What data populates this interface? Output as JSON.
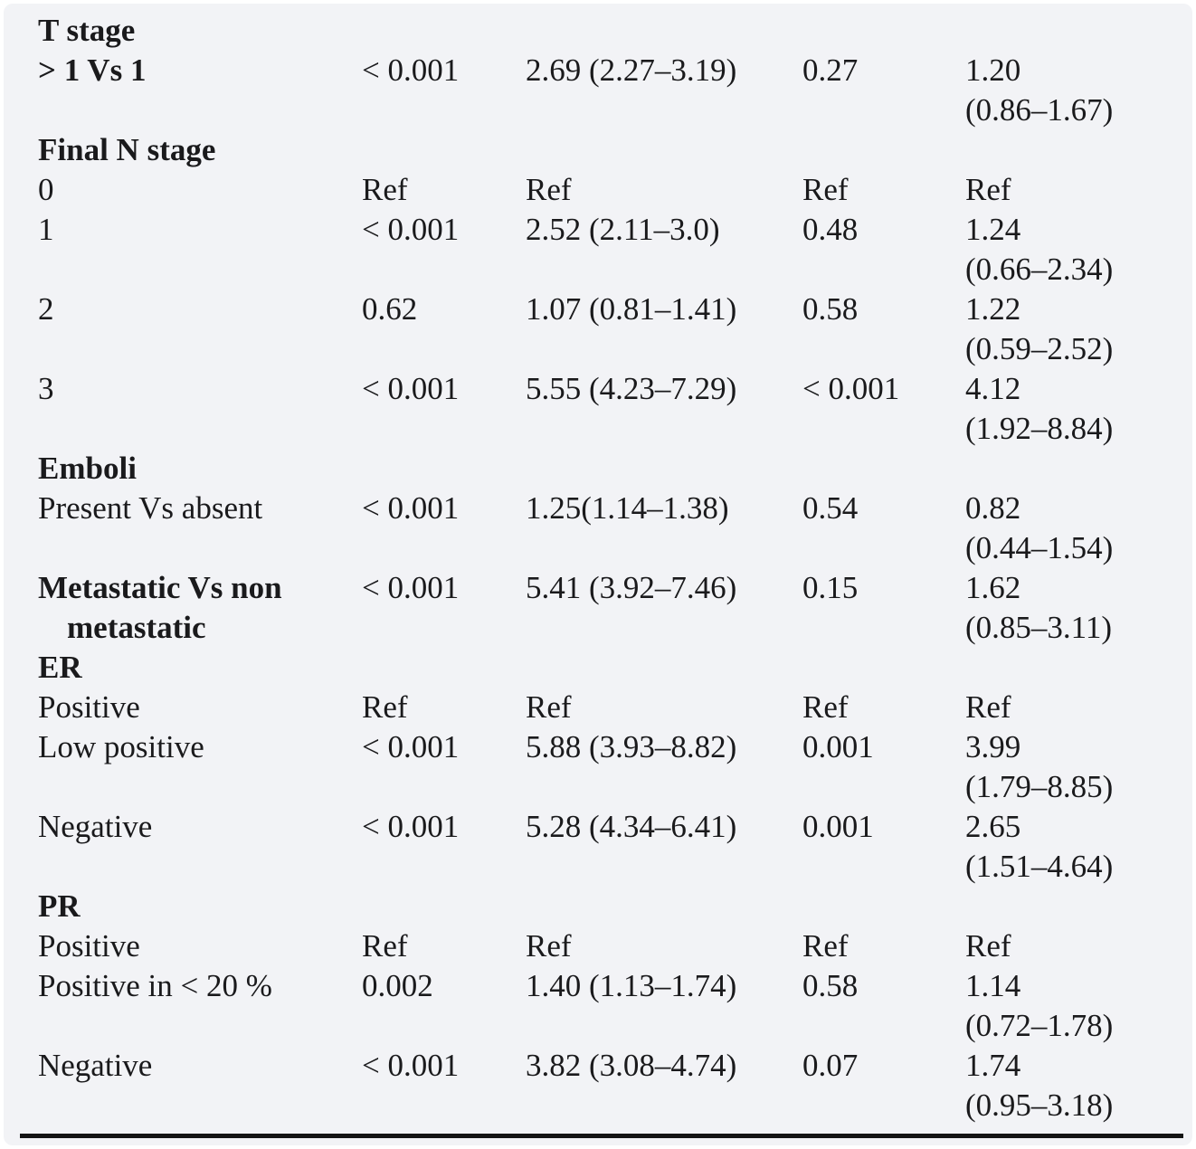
{
  "page": {
    "background_color": "#f2f3f6",
    "text_color": "#1a1a1c",
    "rule_color": "#141414"
  },
  "table": {
    "rows": [
      {
        "type": "section",
        "label": "T stage"
      },
      {
        "type": "data",
        "label": "> 1 Vs 1",
        "p1": "< 0.001",
        "est1": "2.69 (2.27–3.19)",
        "p2": "0.27",
        "est2": "1.20\n(0.86–1.67)"
      },
      {
        "type": "section",
        "label": "Final N stage"
      },
      {
        "type": "data",
        "label": "0",
        "p1": "Ref",
        "est1": "Ref",
        "p2": "Ref",
        "est2": "Ref"
      },
      {
        "type": "data",
        "label": "1",
        "p1": "< 0.001",
        "est1": "2.52 (2.11–3.0)",
        "p2": "0.48",
        "est2": "1.24\n(0.66–2.34)"
      },
      {
        "type": "data",
        "label": "2",
        "p1": "0.62",
        "est1": "1.07 (0.81–1.41)",
        "p2": "0.58",
        "est2": "1.22\n(0.59–2.52)"
      },
      {
        "type": "data",
        "label": "3",
        "p1": "< 0.001",
        "est1": "5.55 (4.23–7.29)",
        "p2": "< 0.001",
        "est2": "4.12\n(1.92–8.84)"
      },
      {
        "type": "section",
        "label": "Emboli"
      },
      {
        "type": "data",
        "label": "Present Vs absent",
        "p1": "< 0.001",
        "est1": "1.25(1.14–1.38)",
        "p2": "0.54",
        "est2": "0.82\n(0.44–1.54)"
      },
      {
        "type": "data",
        "label": "Metastatic Vs non\nmetastatic",
        "p1": "< 0.001",
        "est1": "5.41 (3.92–7.46)",
        "p2": "0.15",
        "est2": "1.62\n(0.85–3.11)"
      },
      {
        "type": "section",
        "label": "ER"
      },
      {
        "type": "data",
        "label": "Positive",
        "p1": "Ref",
        "est1": "Ref",
        "p2": "Ref",
        "est2": "Ref"
      },
      {
        "type": "data",
        "label": "Low positive",
        "p1": "< 0.001",
        "est1": "5.88 (3.93–8.82)",
        "p2": "0.001",
        "est2": "3.99\n(1.79–8.85)"
      },
      {
        "type": "data",
        "label": "Negative",
        "p1": "< 0.001",
        "est1": "5.28 (4.34–6.41)",
        "p2": "0.001",
        "est2": "2.65\n(1.51–4.64)"
      },
      {
        "type": "section",
        "label": "PR"
      },
      {
        "type": "data",
        "label": "Positive",
        "p1": "Ref",
        "est1": "Ref",
        "p2": "Ref",
        "est2": "Ref"
      },
      {
        "type": "data",
        "label": "Positive in < 20 %",
        "p1": "0.002",
        "est1": "1.40 (1.13–1.74)",
        "p2": "0.58",
        "est2": "1.14\n(0.72–1.78)"
      },
      {
        "type": "data",
        "label": "Negative",
        "p1": "< 0.001",
        "est1": "3.82 (3.08–4.74)",
        "p2": "0.07",
        "est2": "1.74\n(0.95–3.18)"
      }
    ]
  }
}
